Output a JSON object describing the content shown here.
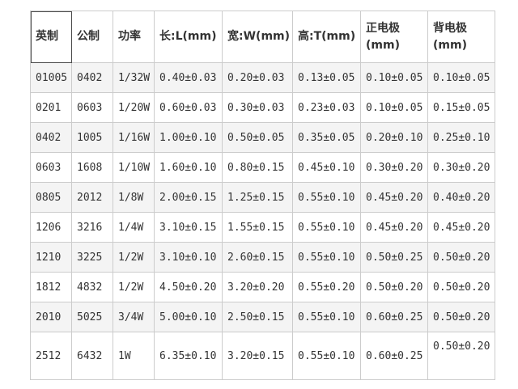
{
  "table": {
    "title": "chip-resistor-package-size-spec",
    "headers": [
      {
        "name": "imperial",
        "label": "英制"
      },
      {
        "name": "metric",
        "label": "公制"
      },
      {
        "name": "power",
        "label": "功率"
      },
      {
        "name": "length",
        "label": "长:L(mm)"
      },
      {
        "name": "width",
        "label": "宽:W(mm)"
      },
      {
        "name": "height",
        "label": "高:T(mm)"
      },
      {
        "name": "front-electrode",
        "label": "正电极\n(mm)"
      },
      {
        "name": "back-electrode",
        "label": "背电极\n(mm)"
      }
    ],
    "rows": [
      [
        "01005",
        "0402",
        "1/32W",
        "0.40±0.03",
        "0.20±0.03",
        "0.13±0.05",
        "0.10±0.05",
        "0.10±0.05"
      ],
      [
        "0201",
        "0603",
        "1/20W",
        "0.60±0.03",
        "0.30±0.03",
        "0.23±0.03",
        "0.10±0.05",
        "0.15±0.05"
      ],
      [
        "0402",
        "1005",
        "1/16W",
        "1.00±0.10",
        "0.50±0.05",
        "0.35±0.05",
        "0.20±0.10",
        "0.25±0.10"
      ],
      [
        "0603",
        "1608",
        "1/10W",
        "1.60±0.10",
        "0.80±0.15",
        "0.45±0.10",
        "0.30±0.20",
        "0.30±0.20"
      ],
      [
        "0805",
        "2012",
        "1/8W",
        "2.00±0.15",
        "1.25±0.15",
        "0.55±0.10",
        "0.45±0.20",
        "0.40±0.20"
      ],
      [
        "1206",
        "3216",
        "1/4W",
        "3.10±0.15",
        "1.55±0.15",
        "0.55±0.10",
        "0.45±0.20",
        "0.45±0.20"
      ],
      [
        "1210",
        "3225",
        "1/2W",
        "3.10±0.10",
        "2.60±0.15",
        "0.55±0.10",
        "0.50±0.25",
        "0.50±0.20"
      ],
      [
        "1812",
        "4832",
        "1/2W",
        "4.50±0.20",
        "3.20±0.20",
        "0.55±0.20",
        "0.50±0.20",
        "0.50±0.20"
      ],
      [
        "2010",
        "5025",
        "3/4W",
        "5.00±0.10",
        "2.50±0.15",
        "0.55±0.10",
        "0.60±0.25",
        "0.50±0.20"
      ],
      [
        "2512",
        "6432",
        "1W",
        "6.35±0.10",
        "3.20±0.15",
        "0.55±0.10",
        "0.60±0.25",
        "0.50±0.20"
      ]
    ],
    "selected_header_index": 0
  },
  "colors": {
    "text": "#333333",
    "grid_border": "#cccccc",
    "stripe_row_bg": "#f4f4f4",
    "row_bg": "#ffffff",
    "selected_cell_border": "#4a4a4a",
    "page_bg": "#ffffff"
  }
}
